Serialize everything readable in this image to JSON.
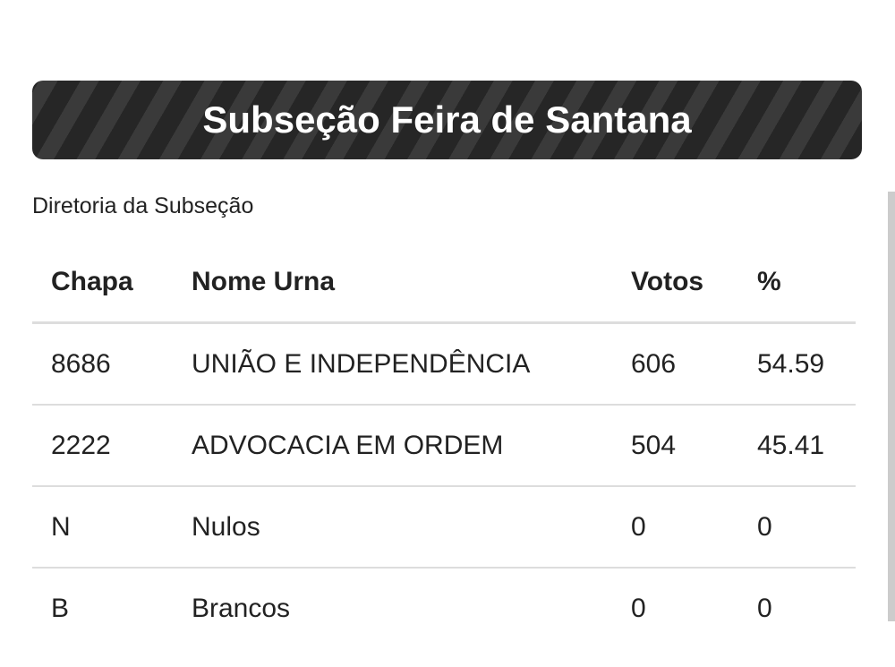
{
  "title": "Subseção Feira de Santana",
  "subtitle": "Diretoria da Subseção",
  "table": {
    "headers": [
      "Chapa",
      "Nome Urna",
      "Votos",
      "%"
    ],
    "rows": [
      [
        "8686",
        "UNIÃO E INDEPENDÊNCIA",
        "606",
        "54.59"
      ],
      [
        "2222",
        "ADVOCACIA EM ORDEM",
        "504",
        "45.41"
      ],
      [
        "N",
        "Nulos",
        "0",
        "0"
      ],
      [
        "B",
        "Brancos",
        "0",
        "0"
      ]
    ]
  }
}
